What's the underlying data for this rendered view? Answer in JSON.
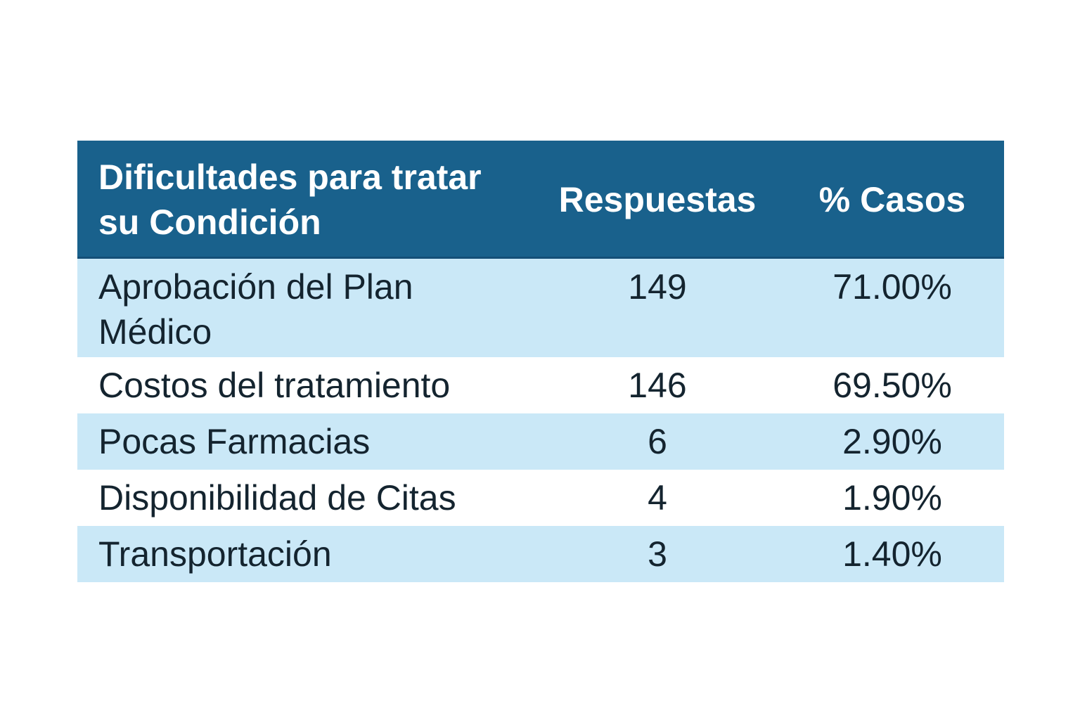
{
  "table": {
    "header": {
      "difficulty_label": "Dificultades para tratar su Condición",
      "responses_label": "Respuestas",
      "cases_label": "% Casos"
    },
    "rows": [
      {
        "label": "Aprobación del Plan Médico",
        "responses": "149",
        "cases": "71.00%"
      },
      {
        "label": "Costos del tratamiento",
        "responses": "146",
        "cases": "69.50%"
      },
      {
        "label": "Pocas Farmacias",
        "responses": "6",
        "cases": "2.90%"
      },
      {
        "label": "Disponibilidad de Citas",
        "responses": "4",
        "cases": "1.90%"
      },
      {
        "label": "Transportación",
        "responses": "3",
        "cases": "1.40%"
      }
    ],
    "colors": {
      "header_bg": "#19618C",
      "header_text": "#FFFFFF",
      "row_alt_bg": "#CAE8F7",
      "row_bg": "#FFFFFF",
      "body_text": "#14242F"
    }
  },
  "chart_data": {
    "type": "table",
    "title": "Dificultades para tratar su Condición",
    "columns": [
      "Dificultades para tratar su Condición",
      "Respuestas",
      "% Casos"
    ],
    "categories": [
      "Aprobación del Plan Médico",
      "Costos del tratamiento",
      "Pocas Farmacias",
      "Disponibilidad de Citas",
      "Transportación"
    ],
    "series": [
      {
        "name": "Respuestas",
        "values": [
          149,
          146,
          6,
          4,
          3
        ]
      },
      {
        "name": "% Casos",
        "values": [
          71.0,
          69.5,
          2.9,
          1.9,
          1.4
        ]
      }
    ]
  }
}
